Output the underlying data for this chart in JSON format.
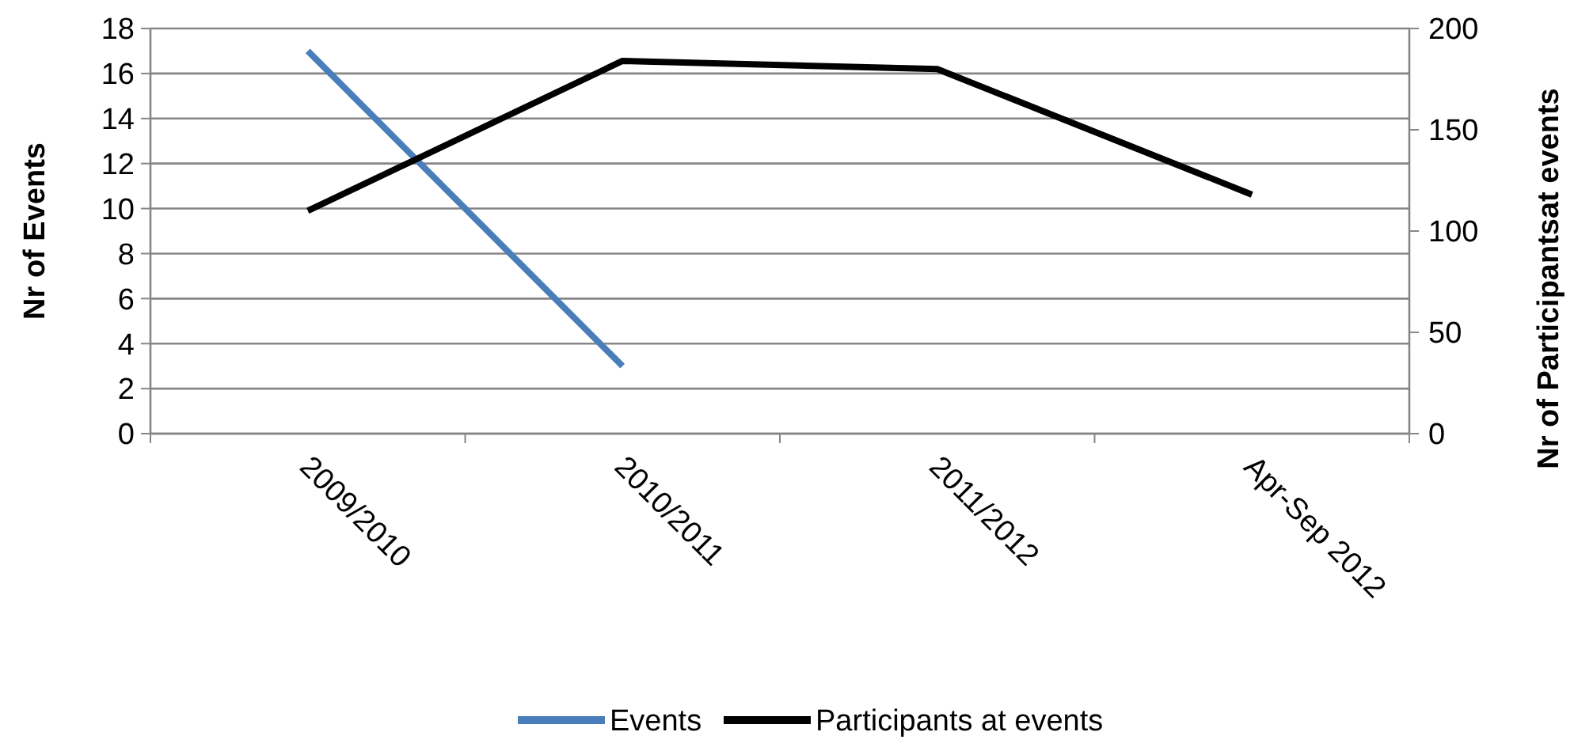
{
  "chart_data": {
    "type": "line",
    "categories": [
      "2009/2010",
      "2010/2011",
      "2011/2012",
      "Apr-Sep 2012"
    ],
    "ylabel": "Nr of Events",
    "y2label": "Nr of Participantsat events",
    "ylim": [
      0,
      18
    ],
    "yticks": [
      0,
      2,
      4,
      6,
      8,
      10,
      12,
      14,
      16,
      18
    ],
    "y2lim": [
      0,
      200
    ],
    "y2ticks": [
      0,
      50,
      100,
      150,
      200
    ],
    "grid": "y",
    "legend": "bottom",
    "marker": "none",
    "series": [
      {
        "name": "Events",
        "color": "#4a7ebb",
        "values": [
          17,
          3,
          null,
          null
        ]
      },
      {
        "name": "Participants at events",
        "color": "#000000",
        "axis": "y2",
        "values": [
          110,
          184,
          180,
          118
        ]
      }
    ]
  }
}
